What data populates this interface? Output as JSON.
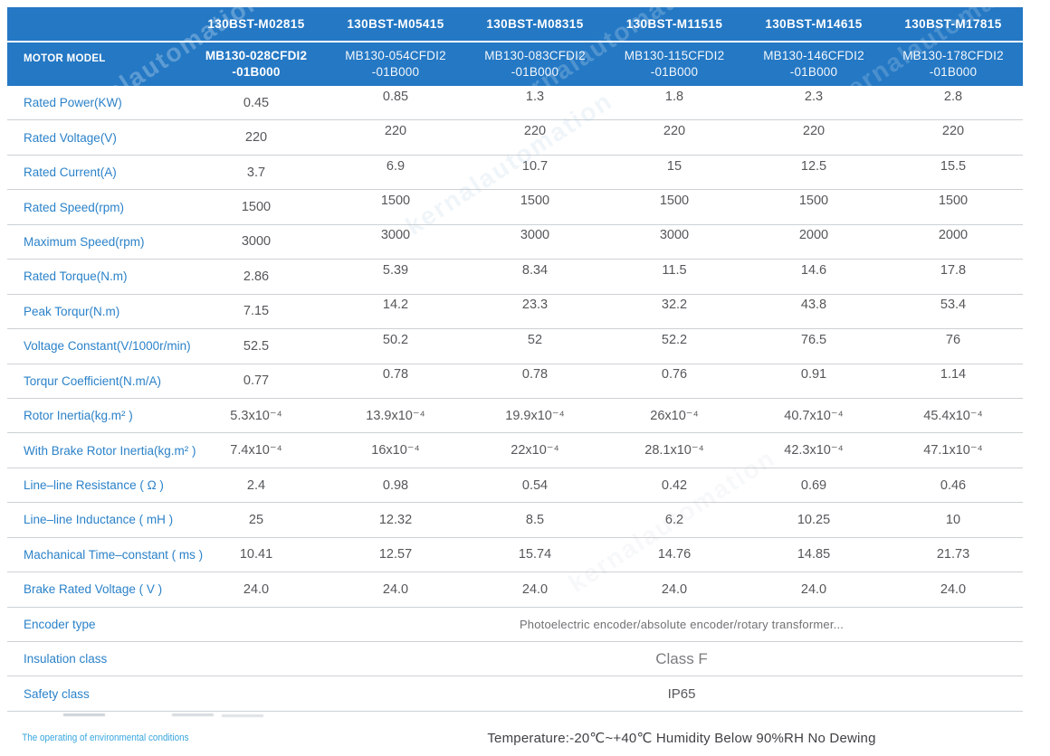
{
  "watermark": {
    "text": "kernalautomation"
  },
  "header": {
    "motor_model_label": "MOTOR MODEL",
    "columns": [
      {
        "series": "130BST-M02815",
        "model": "MB130-028CFDI2\n-01B000"
      },
      {
        "series": "130BST-M05415",
        "model": "MB130-054CFDI2\n-01B000"
      },
      {
        "series": "130BST-M08315",
        "model": "MB130-083CFDI2\n-01B000"
      },
      {
        "series": "130BST-M11515",
        "model": "MB130-115CFDI2\n-01B000"
      },
      {
        "series": "130BST-M14615",
        "model": "MB130-146CFDI2\n-01B000"
      },
      {
        "series": "130BST-M17815",
        "model": "MB130-178CFDI2\n-01B000"
      }
    ]
  },
  "table": {
    "rows": [
      {
        "label": "Rated Power(KW)",
        "values": [
          "0.45",
          "0.85",
          "1.3",
          "1.8",
          "2.3",
          "2.8"
        ]
      },
      {
        "label": "Rated Voltage(V)",
        "values": [
          "220",
          "220",
          "220",
          "220",
          "220",
          "220"
        ]
      },
      {
        "label": "Rated Current(A)",
        "values": [
          "3.7",
          "6.9",
          "10.7",
          "15",
          "12.5",
          "15.5"
        ]
      },
      {
        "label": "Rated Speed(rpm)",
        "values": [
          "1500",
          "1500",
          "1500",
          "1500",
          "1500",
          "1500"
        ]
      },
      {
        "label": "Maximum Speed(rpm)",
        "values": [
          "3000",
          "3000",
          "3000",
          "3000",
          "2000",
          "2000"
        ]
      },
      {
        "label": "Rated Torque(N.m)",
        "values": [
          "2.86",
          "5.39",
          "8.34",
          "11.5",
          "14.6",
          "17.8"
        ]
      },
      {
        "label": "Peak Torqur(N.m)",
        "values": [
          "7.15",
          "14.2",
          "23.3",
          "32.2",
          "43.8",
          "53.4"
        ]
      },
      {
        "label": "Voltage Constant(V/1000r/min)",
        "values": [
          "52.5",
          "50.2",
          "52",
          "52.2",
          "76.5",
          "76"
        ]
      },
      {
        "label": "Torqur Coefficient(N.m/A)",
        "values": [
          "0.77",
          "0.78",
          "0.78",
          "0.76",
          "0.91",
          "1.14"
        ]
      },
      {
        "label": "Rotor Inertia(kg.m² )",
        "values": [
          "5.3x10⁻⁴",
          "13.9x10⁻⁴",
          "19.9x10⁻⁴",
          "26x10⁻⁴",
          "40.7x10⁻⁴",
          "45.4x10⁻⁴"
        ]
      },
      {
        "label": "With Brake Rotor Inertia(kg.m² )",
        "values": [
          "7.4x10⁻⁴",
          "16x10⁻⁴",
          "22x10⁻⁴",
          "28.1x10⁻⁴",
          "42.3x10⁻⁴",
          "47.1x10⁻⁴"
        ]
      },
      {
        "label": "Line–line Resistance ( Ω )",
        "values": [
          "2.4",
          "0.98",
          "0.54",
          "0.42",
          "0.69",
          "0.46"
        ]
      },
      {
        "label": "Line–line Inductance ( mH )",
        "values": [
          "25",
          "12.32",
          "8.5",
          "6.2",
          "10.25",
          "10"
        ]
      },
      {
        "label": "Machanical Time–constant ( ms )",
        "values": [
          "10.41",
          "12.57",
          "15.74",
          "14.76",
          "14.85",
          "21.73"
        ]
      },
      {
        "label": "Brake Rated Voltage ( V )",
        "values": [
          "24.0",
          "24.0",
          "24.0",
          "24.0",
          "24.0",
          "24.0"
        ]
      },
      {
        "label": "Encoder type",
        "merged": "Photoelectric encoder/absolute encoder/rotary transformer..."
      },
      {
        "label": "Insulation class",
        "merged": "Class F"
      },
      {
        "label": "Safety class",
        "merged": "IP65"
      },
      {
        "label": "The operating of environmental conditions",
        "merged": "Temperature:-20℃~+40℃  Humidity Below 90%RH No Dewing"
      }
    ]
  }
}
